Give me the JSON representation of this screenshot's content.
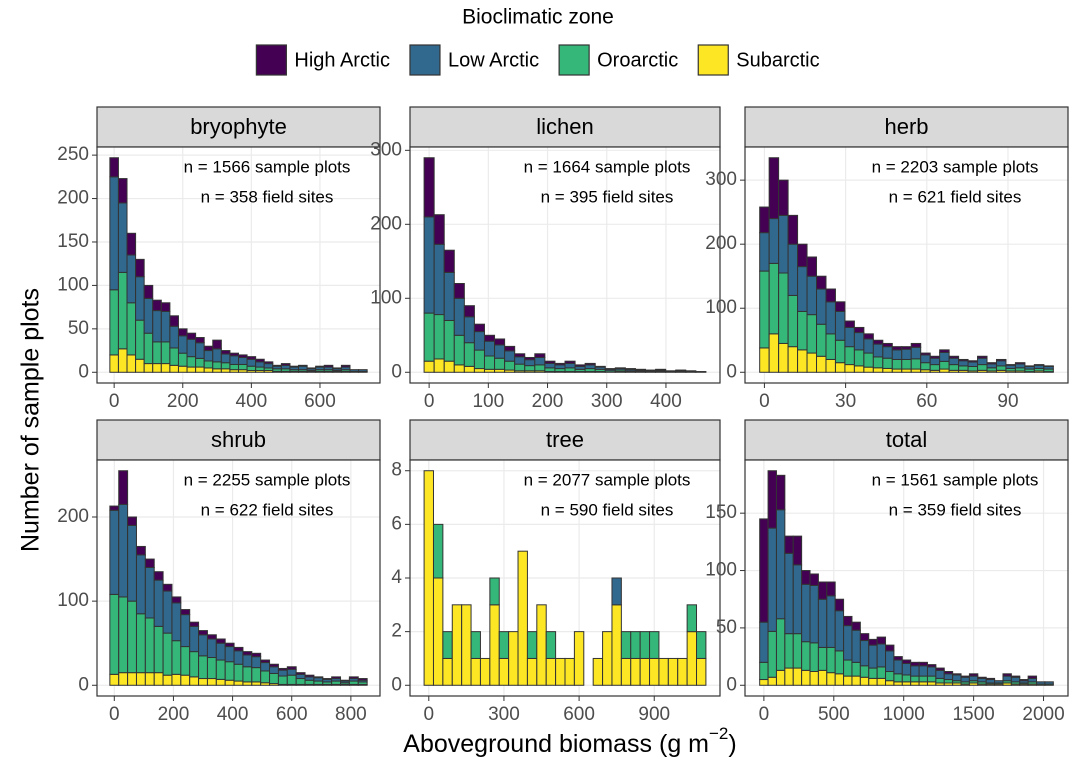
{
  "legend_title": "Bioclimatic zone",
  "y_label": "Number of sample plots",
  "x_label": {
    "text": "Aboveground biomass (g m",
    "superscript": "−2",
    "close": ")"
  },
  "chart_data": [
    {
      "type": "histogram",
      "title": "bryophyte",
      "annotations": [
        "n = 1566 sample plots",
        "n = 358 field sites"
      ],
      "bins": [
        -12.5,
        12.5,
        37.5,
        62.5,
        87.5,
        112.5,
        137.5,
        162.5,
        187.5,
        212.5,
        237.5,
        262.5,
        287.5,
        312.5,
        337.5,
        362.5,
        387.5,
        412.5,
        437.5,
        462.5,
        487.5,
        512.5,
        537.5,
        562.5,
        587.5,
        612.5,
        637.5,
        662.5,
        687.5,
        712.5,
        737.5
      ],
      "series": [
        {
          "name": "High Arctic",
          "color": "#440154",
          "values": [
            22,
            28,
            25,
            20,
            15,
            12,
            10,
            12,
            8,
            7,
            6,
            5,
            10,
            4,
            3,
            3,
            3,
            3,
            2,
            1,
            2,
            1,
            1,
            1,
            1,
            2,
            1,
            2,
            0,
            0
          ]
        },
        {
          "name": "Low Arctic",
          "color": "#31688e",
          "values": [
            130,
            80,
            55,
            50,
            40,
            36,
            35,
            25,
            20,
            20,
            18,
            12,
            15,
            10,
            10,
            8,
            8,
            6,
            5,
            3,
            4,
            3,
            4,
            2,
            3,
            3,
            2,
            3,
            2,
            2
          ]
        },
        {
          "name": "Oroarctic",
          "color": "#35b779",
          "values": [
            75,
            88,
            60,
            45,
            35,
            25,
            25,
            20,
            15,
            12,
            10,
            8,
            8,
            7,
            6,
            6,
            5,
            4,
            3,
            3,
            3,
            2,
            2,
            1,
            2,
            2,
            1,
            2,
            1,
            1
          ]
        },
        {
          "name": "Subarctic",
          "color": "#fde725",
          "values": [
            20,
            27,
            20,
            15,
            10,
            10,
            10,
            8,
            7,
            6,
            6,
            5,
            4,
            4,
            3,
            3,
            2,
            2,
            2,
            1,
            1,
            1,
            1,
            1,
            1,
            1,
            1,
            1,
            0,
            0
          ]
        }
      ],
      "xlim": [
        -50,
        775
      ],
      "ylim": [
        -12.35,
        259.35
      ],
      "xticks": [
        0,
        200,
        400,
        600
      ],
      "yticks": [
        0,
        50,
        100,
        150,
        200,
        250
      ],
      "grid": true
    },
    {
      "type": "histogram",
      "title": "lichen",
      "annotations": [
        "n = 1664 sample plots",
        "n = 395 field sites"
      ],
      "bins": [
        -8.5,
        8.5,
        25.5,
        42.5,
        59.5,
        76.5,
        93.5,
        110.5,
        127.5,
        144.5,
        161.5,
        178.5,
        195.5,
        212.5,
        229.5,
        246.5,
        263.5,
        280.5,
        297.5,
        314.5,
        331.5,
        348.5,
        365.5,
        382.5,
        399.5,
        416.5,
        433.5,
        450.5,
        467.5
      ],
      "series": [
        {
          "name": "High Arctic",
          "color": "#440154",
          "values": [
            80,
            40,
            30,
            20,
            15,
            10,
            8,
            8,
            6,
            4,
            3,
            5,
            3,
            2,
            3,
            2,
            2,
            1,
            1,
            1,
            1,
            1,
            0,
            1,
            0,
            1,
            0,
            0
          ]
        },
        {
          "name": "Low Arctic",
          "color": "#31688e",
          "values": [
            130,
            95,
            65,
            50,
            35,
            25,
            20,
            18,
            14,
            10,
            8,
            10,
            6,
            5,
            6,
            4,
            5,
            3,
            2,
            2,
            2,
            1,
            1,
            1,
            1,
            1,
            1,
            0
          ]
        },
        {
          "name": "Oroarctic",
          "color": "#35b779",
          "values": [
            65,
            60,
            55,
            40,
            32,
            25,
            18,
            15,
            12,
            9,
            7,
            8,
            5,
            4,
            5,
            3,
            4,
            3,
            2,
            2,
            1,
            1,
            1,
            1,
            1,
            1,
            1,
            1
          ]
        },
        {
          "name": "Subarctic",
          "color": "#fde725",
          "values": [
            15,
            18,
            15,
            10,
            8,
            5,
            4,
            4,
            3,
            2,
            2,
            2,
            1,
            1,
            1,
            1,
            1,
            1,
            0,
            1,
            1,
            1,
            1,
            1,
            0,
            0,
            0,
            0
          ]
        }
      ],
      "xlim": [
        -32.3,
        491.3
      ],
      "ylim": [
        -14.5,
        304.5
      ],
      "xticks": [
        0,
        100,
        200,
        300,
        400
      ],
      "yticks": [
        0,
        100,
        200,
        300
      ],
      "grid": true
    },
    {
      "type": "histogram",
      "title": "herb",
      "annotations": [
        "n = 2203 sample plots",
        "n = 621 field sites"
      ],
      "bins": [
        -1.75,
        1.75,
        5.25,
        8.75,
        12.25,
        15.75,
        19.25,
        22.75,
        26.25,
        29.75,
        33.25,
        36.75,
        40.25,
        43.75,
        47.25,
        50.75,
        54.25,
        57.75,
        61.25,
        64.75,
        68.25,
        71.75,
        75.25,
        78.75,
        82.25,
        85.75,
        89.25,
        92.75,
        96.25,
        99.75,
        103.25,
        106.75
      ],
      "series": [
        {
          "name": "High Arctic",
          "color": "#440154",
          "values": [
            40,
            95,
            55,
            45,
            35,
            30,
            20,
            20,
            15,
            10,
            8,
            8,
            6,
            5,
            5,
            4,
            6,
            3,
            3,
            4,
            3,
            2,
            2,
            3,
            2,
            2,
            1,
            2,
            1,
            1,
            1
          ]
        },
        {
          "name": "Low Arctic",
          "color": "#31688e",
          "values": [
            60,
            70,
            90,
            80,
            70,
            60,
            55,
            50,
            45,
            30,
            27,
            22,
            20,
            18,
            15,
            16,
            18,
            12,
            10,
            14,
            10,
            8,
            7,
            10,
            6,
            8,
            5,
            6,
            4,
            5,
            4
          ]
        },
        {
          "name": "Oroarctic",
          "color": "#35b779",
          "values": [
            120,
            110,
            110,
            80,
            60,
            60,
            50,
            40,
            35,
            28,
            25,
            22,
            17,
            16,
            15,
            15,
            16,
            11,
            9,
            12,
            9,
            7,
            7,
            9,
            5,
            7,
            4,
            5,
            4,
            4,
            4
          ]
        },
        {
          "name": "Subarctic",
          "color": "#fde725",
          "values": [
            38,
            60,
            45,
            40,
            35,
            30,
            25,
            20,
            15,
            12,
            10,
            8,
            7,
            6,
            5,
            5,
            5,
            4,
            3,
            5,
            3,
            3,
            2,
            3,
            2,
            3,
            2,
            2,
            1,
            2,
            1
          ]
        }
      ],
      "xlim": [
        -7.175,
        112.175
      ],
      "ylim": [
        -16.75,
        351.75
      ],
      "xticks": [
        0,
        30,
        60,
        90
      ],
      "yticks": [
        0,
        100,
        200,
        300
      ],
      "grid": true
    },
    {
      "type": "histogram",
      "title": "shrub",
      "annotations": [
        "n = 2255 sample plots",
        "n = 622 field sites"
      ],
      "bins": [
        -15,
        15,
        45,
        75,
        105,
        135,
        165,
        195,
        225,
        255,
        285,
        315,
        345,
        375,
        405,
        435,
        465,
        495,
        525,
        555,
        585,
        615,
        645,
        675,
        705,
        735,
        765,
        795,
        825,
        855
      ],
      "series": [
        {
          "name": "High Arctic",
          "color": "#440154",
          "values": [
            5,
            40,
            10,
            10,
            10,
            10,
            8,
            7,
            6,
            5,
            5,
            5,
            5,
            4,
            4,
            4,
            4,
            3,
            3,
            2,
            3,
            2,
            2,
            1,
            1,
            2,
            1,
            2,
            2
          ]
        },
        {
          "name": "Low Arctic",
          "color": "#31688e",
          "values": [
            100,
            110,
            90,
            70,
            60,
            55,
            50,
            45,
            38,
            30,
            25,
            22,
            20,
            18,
            16,
            14,
            13,
            10,
            8,
            7,
            7,
            5,
            4,
            4,
            3,
            3,
            2,
            3,
            2
          ]
        },
        {
          "name": "Oroarctic",
          "color": "#35b779",
          "values": [
            95,
            90,
            85,
            70,
            65,
            55,
            50,
            40,
            34,
            30,
            27,
            25,
            23,
            22,
            20,
            18,
            17,
            14,
            12,
            10,
            11,
            7,
            5,
            4,
            3,
            4,
            2,
            4,
            3
          ]
        },
        {
          "name": "Subarctic",
          "color": "#fde725",
          "values": [
            13,
            15,
            15,
            15,
            15,
            15,
            12,
            13,
            12,
            10,
            8,
            8,
            7,
            6,
            5,
            4,
            4,
            3,
            2,
            1,
            1,
            1,
            1,
            1,
            1,
            1,
            1,
            1,
            1
          ]
        }
      ],
      "xlim": [
        -58.5,
        898.5
      ],
      "ylim": [
        -12.75,
        267.75
      ],
      "xticks": [
        0,
        200,
        400,
        600,
        800
      ],
      "yticks": [
        0,
        100,
        200
      ],
      "grid": true
    },
    {
      "type": "histogram",
      "title": "tree",
      "annotations": [
        "n = 2077 sample plots",
        "n = 590 field sites"
      ],
      "bins": [
        -18.75,
        18.75,
        56.25,
        93.75,
        131.25,
        168.75,
        206.25,
        243.75,
        281.25,
        318.75,
        356.25,
        393.75,
        431.25,
        468.75,
        506.25,
        543.75,
        581.25,
        618.75,
        656.25,
        693.75,
        731.25,
        768.75,
        806.25,
        843.75,
        881.25,
        918.75,
        956.25,
        993.75,
        1031.25,
        1068.75,
        1106.25
      ],
      "series": [
        {
          "name": "High Arctic",
          "color": "#440154",
          "values": [
            0,
            0,
            0,
            0,
            0,
            0,
            0,
            0,
            0,
            0,
            0,
            0,
            0,
            0,
            0,
            0,
            0,
            0,
            0,
            0,
            0,
            0,
            0,
            0,
            0,
            0,
            0,
            0,
            0,
            0
          ]
        },
        {
          "name": "Low Arctic",
          "color": "#31688e",
          "values": [
            0,
            0,
            0,
            0,
            0,
            0,
            0,
            0,
            0,
            0,
            0,
            0,
            0,
            0,
            0,
            0,
            0,
            0,
            0,
            0,
            1,
            0,
            0,
            0,
            0,
            0,
            0,
            0,
            0,
            0
          ]
        },
        {
          "name": "Oroarctic",
          "color": "#35b779",
          "values": [
            0,
            2,
            1,
            0,
            0,
            1,
            0,
            1,
            1,
            0,
            0,
            1,
            0,
            1,
            0,
            0,
            0,
            0,
            0,
            0,
            0,
            1,
            1,
            1,
            1,
            0,
            0,
            0,
            1,
            1
          ]
        },
        {
          "name": "Subarctic",
          "color": "#fde725",
          "values": [
            8,
            4,
            1,
            3,
            3,
            1,
            1,
            3,
            1,
            2,
            5,
            1,
            3,
            1,
            1,
            1,
            2,
            0,
            1,
            2,
            3,
            1,
            1,
            1,
            1,
            1,
            1,
            1,
            2,
            1
          ]
        }
      ],
      "xlim": [
        -75,
        1162.5
      ],
      "ylim": [
        -0.4,
        8.4
      ],
      "xticks": [
        0,
        300,
        600,
        900
      ],
      "yticks": [
        0,
        2,
        4,
        6,
        8
      ],
      "grid": true
    },
    {
      "type": "histogram",
      "title": "total",
      "annotations": [
        "n = 1561 sample plots",
        "n = 359 field sites"
      ],
      "bins": [
        -30,
        30,
        90,
        150,
        210,
        270,
        330,
        390,
        450,
        510,
        570,
        630,
        690,
        750,
        810,
        870,
        930,
        990,
        1050,
        1110,
        1170,
        1230,
        1290,
        1350,
        1410,
        1470,
        1530,
        1590,
        1650,
        1710,
        1770,
        1830,
        1890,
        1950,
        2010,
        2070
      ],
      "series": [
        {
          "name": "High Arctic",
          "color": "#440154",
          "values": [
            90,
            50,
            30,
            15,
            25,
            12,
            10,
            15,
            12,
            10,
            8,
            7,
            6,
            5,
            6,
            5,
            3,
            3,
            3,
            3,
            2,
            2,
            2,
            1,
            1,
            2,
            1,
            1,
            0,
            2,
            1,
            1,
            2,
            0,
            0
          ]
        },
        {
          "name": "Low Arctic",
          "color": "#31688e",
          "values": [
            35,
            90,
            95,
            70,
            60,
            50,
            50,
            42,
            45,
            35,
            30,
            28,
            22,
            20,
            20,
            18,
            12,
            10,
            9,
            9,
            8,
            7,
            5,
            5,
            4,
            4,
            3,
            3,
            2,
            4,
            4,
            2,
            3,
            2,
            2
          ]
        },
        {
          "name": "Oroarctic",
          "color": "#35b779",
          "values": [
            15,
            40,
            45,
            30,
            30,
            25,
            25,
            20,
            22,
            20,
            14,
            12,
            10,
            9,
            10,
            8,
            7,
            6,
            5,
            5,
            5,
            4,
            3,
            2,
            2,
            2,
            2,
            1,
            1,
            2,
            2,
            1,
            2,
            1,
            1
          ]
        },
        {
          "name": "Subarctic",
          "color": "#fde725",
          "values": [
            5,
            7,
            13,
            15,
            15,
            13,
            12,
            13,
            11,
            10,
            8,
            8,
            7,
            6,
            6,
            4,
            3,
            3,
            3,
            3,
            3,
            2,
            2,
            2,
            1,
            2,
            1,
            1,
            1,
            2,
            1,
            1,
            1,
            0,
            0
          ]
        }
      ],
      "xlim": [
        -135,
        2175
      ],
      "ylim": [
        -9.35,
        196.35
      ],
      "xticks": [
        0,
        500,
        1000,
        1500,
        2000
      ],
      "yticks": [
        0,
        50,
        100,
        150
      ],
      "grid": true
    }
  ]
}
